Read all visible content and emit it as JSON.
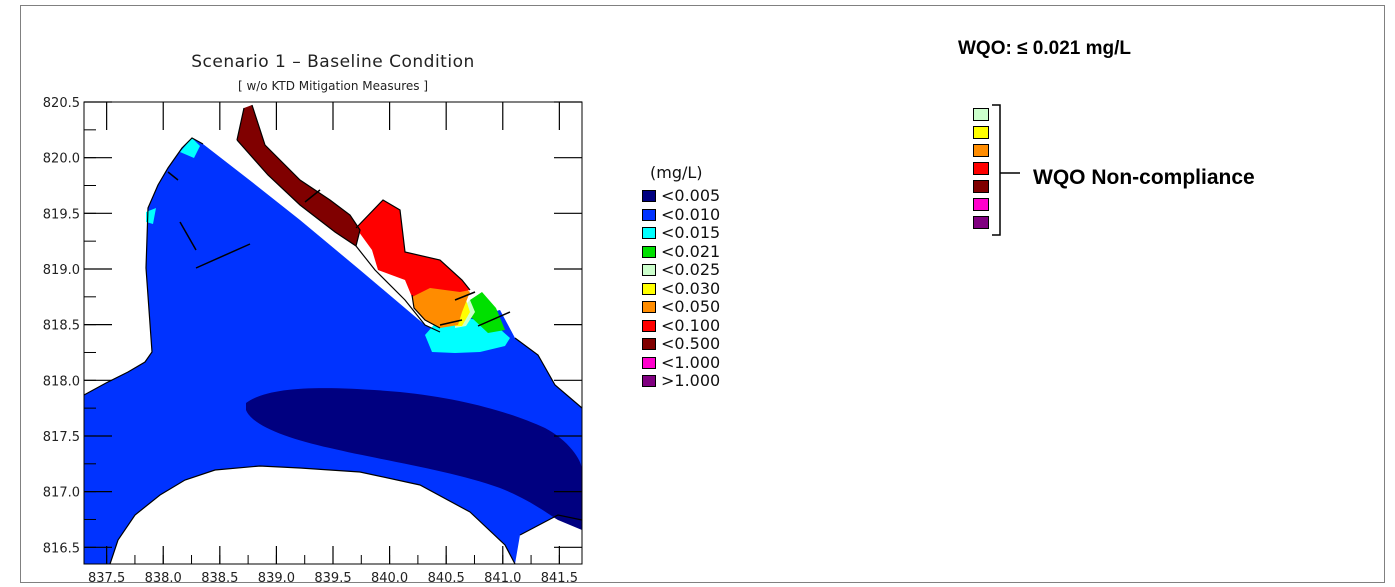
{
  "plot": {
    "title": "Scenario 1 – Baseline Condition",
    "subtitle": "[ w/o KTD Mitigation Measures ]"
  },
  "chart_data": {
    "type": "heatmap",
    "title": "Scenario 1 – Baseline Condition",
    "subtitle": "[ w/o KTD Mitigation Measures ]",
    "x_ticks": [
      "837.5",
      "838.0",
      "838.5",
      "839.0",
      "839.5",
      "840.0",
      "840.5",
      "841.0",
      "841.5"
    ],
    "y_ticks": [
      "820.5",
      "820.0",
      "819.5",
      "819.0",
      "818.5",
      "818.0",
      "817.5",
      "817.0",
      "816.5"
    ],
    "xlim": [
      837.3,
      841.7
    ],
    "ylim": [
      816.35,
      820.5
    ],
    "legend_unit": "(mg/L)",
    "legend": [
      {
        "label": "<0.005",
        "color": "#000080"
      },
      {
        "label": "<0.010",
        "color": "#0033ff"
      },
      {
        "label": "<0.015",
        "color": "#00ffff"
      },
      {
        "label": "<0.021",
        "color": "#00e000"
      },
      {
        "label": "<0.025",
        "color": "#ccffcc"
      },
      {
        "label": "<0.030",
        "color": "#ffff00"
      },
      {
        "label": "<0.050",
        "color": "#ff8c00"
      },
      {
        "label": "<0.100",
        "color": "#ff0000"
      },
      {
        "label": "<0.500",
        "color": "#800000"
      },
      {
        "label": "<1.000",
        "color": "#ff00cc"
      },
      {
        "label": ">1.000",
        "color": "#800080"
      }
    ]
  },
  "wqo": {
    "title": "WQO: ≤ 0.021 mg/L",
    "noncompliance_label": "WQO Non-compliance",
    "noncompliance_colors": [
      "#ccffcc",
      "#ffff00",
      "#ff8c00",
      "#ff0000",
      "#800000",
      "#ff00cc",
      "#800080"
    ]
  }
}
